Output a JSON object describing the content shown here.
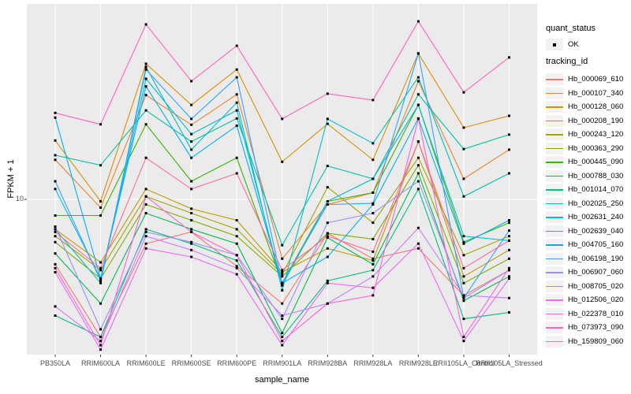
{
  "figure": {
    "y_axis": {
      "title": "FPKM + 1",
      "tick_label": "10"
    },
    "x_axis": {
      "title": "sample_name"
    },
    "legend": {
      "quant_status_title": "quant_status",
      "quant_status_ok_label": "OK",
      "tracking_id_title": "tracking_id"
    },
    "colors": {
      "panel_bg": "#EBEBEB",
      "grid": "#FFFFFF",
      "tick_text": "#4D4D4D",
      "legend_key_bg": "#F2F2F2",
      "marker": "#000000"
    }
  },
  "chart_data": {
    "type": "line",
    "title": "",
    "xlabel": "sample_name",
    "ylabel": "FPKM + 1",
    "y_scale": "log10",
    "y_tick_labels": [
      "10"
    ],
    "ylim_approx": [
      2,
      72
    ],
    "grid": true,
    "legend_position": "right",
    "marker": "small black square (quant_status = OK) at every data point",
    "quant_status": "OK",
    "categories": [
      "PB350LA",
      "RRIM600LA",
      "RRIM600LE",
      "RRIM600SE",
      "RRIM600PE",
      "RRIM901LA",
      "RRIM928BA",
      "RRIM928LA",
      "RRIM928LE",
      "RRII105LA_Control",
      "RRII105LA_Stressed"
    ],
    "series": [
      {
        "name": "Hb_000069_610",
        "color": "#F8766D",
        "values": [
          5.2,
          2.5,
          6.4,
          7.2,
          5.1,
          3.5,
          7.1,
          5.5,
          6.1,
          3.8,
          4.9
        ]
      },
      {
        "name": "Hb_000107_340",
        "color": "#EA8331",
        "values": [
          14.9,
          9.2,
          28.6,
          21.2,
          28.8,
          5.5,
          9.5,
          10.7,
          32.9,
          12.3,
          16.5
        ]
      },
      {
        "name": "Hb_000128_060",
        "color": "#D89000",
        "values": [
          18.1,
          9.8,
          39.2,
          25.9,
          37.0,
          14.6,
          21.4,
          14.9,
          43.5,
          20.6,
          23.2
        ]
      },
      {
        "name": "Hb_000208_190",
        "color": "#C09B00",
        "values": [
          7.4,
          5.3,
          11.1,
          9.1,
          8.1,
          4.8,
          6.1,
          5.4,
          17.9,
          4.6,
          6.0
        ]
      },
      {
        "name": "Hb_000243_120",
        "color": "#A3A500",
        "values": [
          6.9,
          4.9,
          10.3,
          8.7,
          7.4,
          4.7,
          11.3,
          7.9,
          15.2,
          5.7,
          6.9
        ]
      },
      {
        "name": "Hb_000363_290",
        "color": "#7CAE00",
        "values": [
          6.5,
          4.5,
          9.5,
          8.1,
          6.9,
          4.6,
          7.1,
          6.7,
          14.1,
          4.3,
          5.5
        ]
      },
      {
        "name": "Hb_000445_090",
        "color": "#39B600",
        "values": [
          8.5,
          8.5,
          21.3,
          12.0,
          15.2,
          4.3,
          9.8,
          10.7,
          25.9,
          6.5,
          7.9
        ]
      },
      {
        "name": "Hb_000788_030",
        "color": "#00BB4E",
        "values": [
          5.8,
          3.5,
          8.7,
          7.4,
          6.4,
          2.6,
          6.8,
          5.2,
          13.0,
          3.6,
          4.6
        ]
      },
      {
        "name": "Hb_001014_070",
        "color": "#00BF7D",
        "values": [
          3.1,
          2.5,
          7.4,
          6.4,
          5.4,
          2.5,
          4.4,
          4.9,
          11.1,
          3.0,
          3.2
        ]
      },
      {
        "name": "Hb_002025_250",
        "color": "#00C1A3",
        "values": [
          15.6,
          14.1,
          24.5,
          17.9,
          22.6,
          6.3,
          14.0,
          12.3,
          28.8,
          16.6,
          19.2
        ]
      },
      {
        "name": "Hb_002631_240",
        "color": "#00BFC4",
        "values": [
          7.4,
          4.3,
          38.0,
          16.5,
          26.5,
          4.0,
          22.5,
          17.6,
          34.2,
          10.3,
          13.0
        ]
      },
      {
        "name": "Hb_002639_040",
        "color": "#00BAE0",
        "values": [
          11.1,
          4.5,
          33.7,
          19.3,
          24.5,
          4.2,
          9.8,
          12.3,
          25.9,
          6.9,
          6.6
        ]
      },
      {
        "name": "Hb_004705_160",
        "color": "#00B0F6",
        "values": [
          22.8,
          4.5,
          31.2,
          15.2,
          21.0,
          4.3,
          5.6,
          9.5,
          22.6,
          6.4,
          8.1
        ]
      },
      {
        "name": "Hb_006198_190",
        "color": "#35A2FF",
        "values": [
          12.0,
          4.4,
          37.0,
          22.5,
          34.2,
          4.3,
          9.5,
          9.6,
          43.5,
          3.7,
          7.3
        ]
      },
      {
        "name": "Hb_006907_060",
        "color": "#9590FF",
        "values": [
          7.6,
          2.7,
          7.2,
          6.5,
          5.7,
          3.0,
          7.9,
          8.7,
          12.0,
          3.7,
          4.9
        ]
      },
      {
        "name": "Hb_008705_020",
        "color": "#C77CFF",
        "values": [
          3.4,
          2.4,
          6.9,
          6.0,
          5.0,
          3.1,
          3.5,
          4.6,
          7.5,
          3.8,
          3.7
        ]
      },
      {
        "name": "Hb_012506_020",
        "color": "#E76BF3",
        "values": [
          4.8,
          2.2,
          6.1,
          5.6,
          4.7,
          2.3,
          4.3,
          4.1,
          6.4,
          2.4,
          4.5
        ]
      },
      {
        "name": "Hb_022378_010",
        "color": "#FA62DB",
        "values": [
          5.0,
          2.3,
          10.3,
          7.2,
          5.7,
          2.4,
          3.5,
          3.8,
          22.5,
          2.5,
          5.0
        ]
      },
      {
        "name": "Hb_073973_090",
        "color": "#FF62BC",
        "values": [
          23.9,
          21.3,
          58.3,
          32.9,
          47.0,
          22.5,
          29.0,
          27.2,
          60.1,
          29.4,
          41.8
        ]
      },
      {
        "name": "Hb_159809_060",
        "color": "#FF6A98",
        "values": [
          7.2,
          5.0,
          15.2,
          11.1,
          13.0,
          4.9,
          6.9,
          5.9,
          17.9,
          5.0,
          6.6
        ]
      }
    ]
  }
}
